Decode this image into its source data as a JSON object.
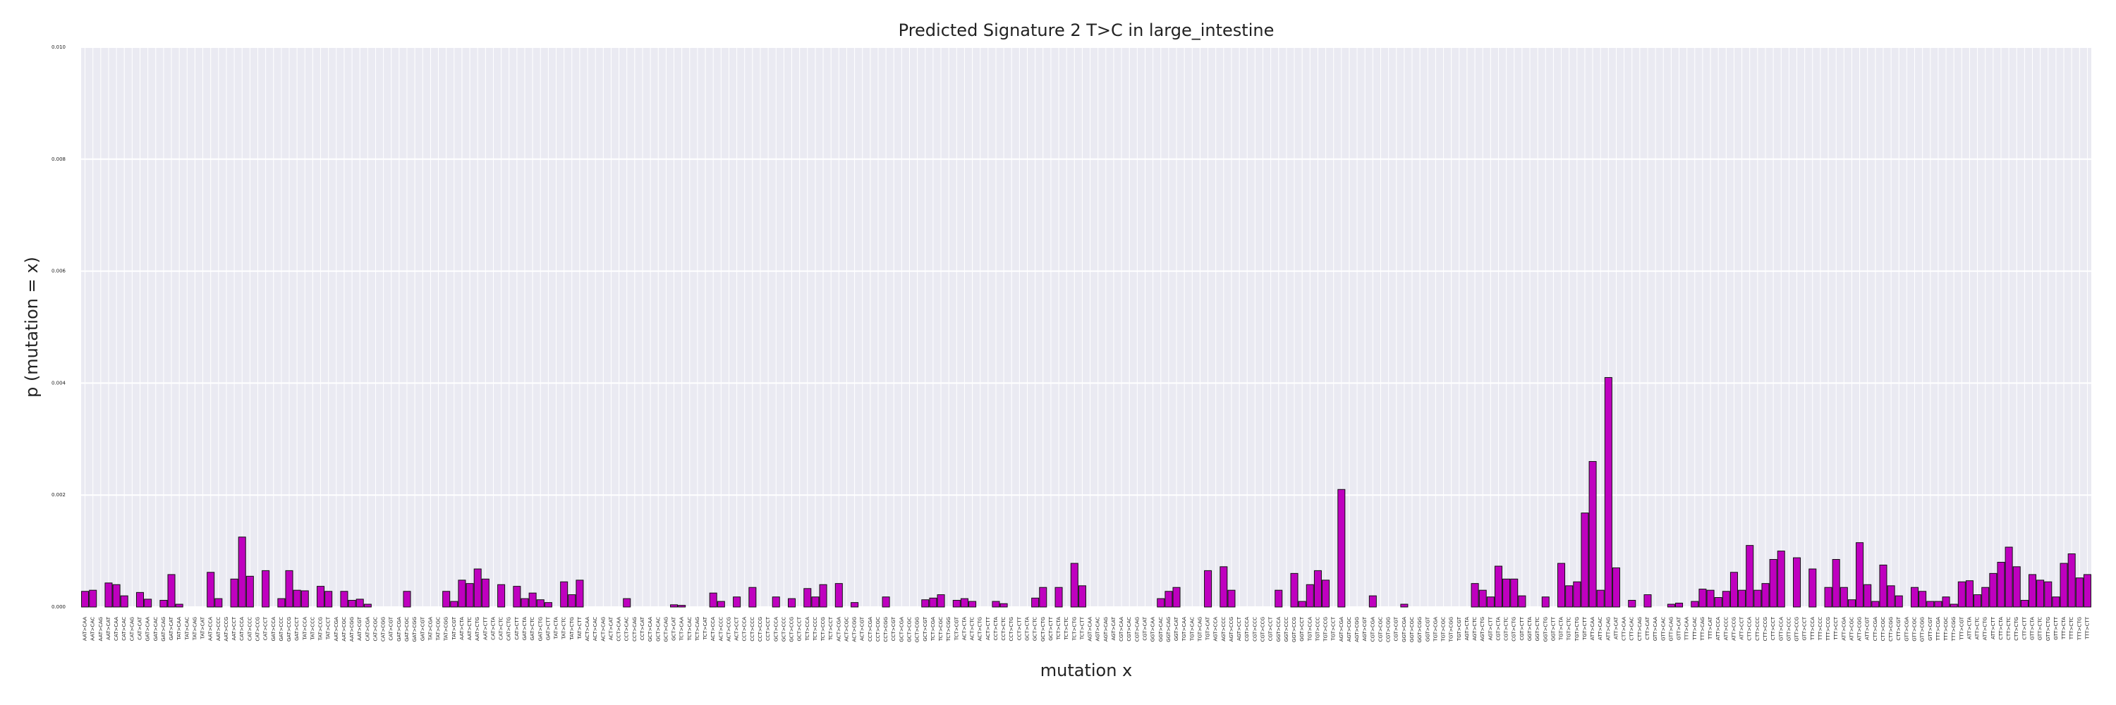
{
  "chart_data": {
    "type": "bar",
    "title": "Predicted Signature 2 T>C in large_intestine",
    "x_label": "mutation x",
    "y_label": "p (mutation = x)",
    "color": "#bf00bf",
    "grid": true,
    "ylim": [
      0,
      0.01
    ],
    "yticks": [
      {
        "value": 0,
        "label": "0.000"
      },
      {
        "value": 0.002,
        "label": "0.002"
      },
      {
        "value": 0.004,
        "label": "0.004"
      },
      {
        "value": 0.006,
        "label": "0.006"
      },
      {
        "value": 0.008,
        "label": "0.008"
      },
      {
        "value": 0.01,
        "label": "0.010"
      }
    ],
    "categories": [
      "AAT>CAA",
      "AAT>CAC",
      "AAT>CAG",
      "AAT>CAT",
      "CAT>CAA",
      "CAT>CAC",
      "CAT>CAG",
      "CAT>CAT",
      "GAT>CAA",
      "GAT>CAC",
      "GAT>CAG",
      "GAT>CAT",
      "TAT>CAA",
      "TAT>CAC",
      "TAT>CAG",
      "TAT>CAT",
      "AAT>CCA",
      "AAT>CCC",
      "AAT>CCG",
      "AAT>CCT",
      "CAT>CCA",
      "CAT>CCC",
      "CAT>CCG",
      "CAT>CCT",
      "GAT>CCA",
      "GAT>CCC",
      "GAT>CCG",
      "GAT>CCT",
      "TAT>CCA",
      "TAT>CCC",
      "TAT>CCG",
      "TAT>CCT",
      "AAT>CGA",
      "AAT>CGC",
      "AAT>CGG",
      "AAT>CGT",
      "CAT>CGA",
      "CAT>CGC",
      "CAT>CGG",
      "CAT>CGT",
      "GAT>CGA",
      "GAT>CGC",
      "GAT>CGG",
      "GAT>CGT",
      "TAT>CGA",
      "TAT>CGC",
      "TAT>CGG",
      "TAT>CGT",
      "AAT>CTA",
      "AAT>CTC",
      "AAT>CTG",
      "AAT>CTT",
      "CAT>CTA",
      "CAT>CTC",
      "CAT>CTG",
      "CAT>CTT",
      "GAT>CTA",
      "GAT>CTC",
      "GAT>CTG",
      "GAT>CTT",
      "TAT>CTA",
      "TAT>CTC",
      "TAT>CTG",
      "TAT>CTT",
      "ACT>CAA",
      "ACT>CAC",
      "ACT>CAG",
      "ACT>CAT",
      "CCT>CAA",
      "CCT>CAC",
      "CCT>CAG",
      "CCT>CAT",
      "GCT>CAA",
      "GCT>CAC",
      "GCT>CAG",
      "GCT>CAT",
      "TCT>CAA",
      "TCT>CAC",
      "TCT>CAG",
      "TCT>CAT",
      "ACT>CCA",
      "ACT>CCC",
      "ACT>CCG",
      "ACT>CCT",
      "CCT>CCA",
      "CCT>CCC",
      "CCT>CCG",
      "CCT>CCT",
      "GCT>CCA",
      "GCT>CCC",
      "GCT>CCG",
      "GCT>CCT",
      "TCT>CCA",
      "TCT>CCC",
      "TCT>CCG",
      "TCT>CCT",
      "ACT>CGA",
      "ACT>CGC",
      "ACT>CGG",
      "ACT>CGT",
      "CCT>CGA",
      "CCT>CGC",
      "CCT>CGG",
      "CCT>CGT",
      "GCT>CGA",
      "GCT>CGC",
      "GCT>CGG",
      "GCT>CGT",
      "TCT>CGA",
      "TCT>CGC",
      "TCT>CGG",
      "TCT>CGT",
      "ACT>CTA",
      "ACT>CTC",
      "ACT>CTG",
      "ACT>CTT",
      "CCT>CTA",
      "CCT>CTC",
      "CCT>CTG",
      "CCT>CTT",
      "GCT>CTA",
      "GCT>CTC",
      "GCT>CTG",
      "GCT>CTT",
      "TCT>CTA",
      "TCT>CTC",
      "TCT>CTG",
      "TCT>CTT",
      "AGT>CAA",
      "AGT>CAC",
      "AGT>CAG",
      "AGT>CAT",
      "CGT>CAA",
      "CGT>CAC",
      "CGT>CAG",
      "CGT>CAT",
      "GGT>CAA",
      "GGT>CAC",
      "GGT>CAG",
      "GGT>CAT",
      "TGT>CAA",
      "TGT>CAC",
      "TGT>CAG",
      "TGT>CAT",
      "AGT>CCA",
      "AGT>CCC",
      "AGT>CCG",
      "AGT>CCT",
      "CGT>CCA",
      "CGT>CCC",
      "CGT>CCG",
      "CGT>CCT",
      "GGT>CCA",
      "GGT>CCC",
      "GGT>CCG",
      "GGT>CCT",
      "TGT>CCA",
      "TGT>CCC",
      "TGT>CCG",
      "TGT>CCT",
      "AGT>CGA",
      "AGT>CGC",
      "AGT>CGG",
      "AGT>CGT",
      "CGT>CGA",
      "CGT>CGC",
      "CGT>CGG",
      "CGT>CGT",
      "GGT>CGA",
      "GGT>CGC",
      "GGT>CGG",
      "GGT>CGT",
      "TGT>CGA",
      "TGT>CGC",
      "TGT>CGG",
      "TGT>CGT",
      "AGT>CTA",
      "AGT>CTC",
      "AGT>CTG",
      "AGT>CTT",
      "CGT>CTA",
      "CGT>CTC",
      "CGT>CTG",
      "CGT>CTT",
      "GGT>CTA",
      "GGT>CTC",
      "GGT>CTG",
      "GGT>CTT",
      "TGT>CTA",
      "TGT>CTC",
      "TGT>CTG",
      "TGT>CTT",
      "ATT>CAA",
      "ATT>CAC",
      "ATT>CAG",
      "ATT>CAT",
      "CTT>CAA",
      "CTT>CAC",
      "CTT>CAG",
      "CTT>CAT",
      "GTT>CAA",
      "GTT>CAC",
      "GTT>CAG",
      "GTT>CAT",
      "TTT>CAA",
      "TTT>CAC",
      "TTT>CAG",
      "TTT>CAT",
      "ATT>CCA",
      "ATT>CCC",
      "ATT>CCG",
      "ATT>CCT",
      "CTT>CCA",
      "CTT>CCC",
      "CTT>CCG",
      "CTT>CCT",
      "GTT>CCA",
      "GTT>CCC",
      "GTT>CCG",
      "GTT>CCT",
      "TTT>CCA",
      "TTT>CCC",
      "TTT>CCG",
      "TTT>CCT",
      "ATT>CGA",
      "ATT>CGC",
      "ATT>CGG",
      "ATT>CGT",
      "CTT>CGA",
      "CTT>CGC",
      "CTT>CGG",
      "CTT>CGT",
      "GTT>CGA",
      "GTT>CGC",
      "GTT>CGG",
      "GTT>CGT",
      "TTT>CGA",
      "TTT>CGC",
      "TTT>CGG",
      "TTT>CGT",
      "ATT>CTA",
      "ATT>CTC",
      "ATT>CTG",
      "ATT>CTT",
      "CTT>CTA",
      "CTT>CTC",
      "CTT>CTG",
      "CTT>CTT",
      "GTT>CTA",
      "GTT>CTC",
      "GTT>CTG",
      "GTT>CTT",
      "TTT>CTA",
      "TTT>CTC",
      "TTT>CTG",
      "TTT>CTT"
    ],
    "values": [
      0.00028,
      0.0003,
      0,
      0.00043,
      0.0004,
      0.0002,
      0,
      0.00026,
      0.00014,
      0,
      0.00012,
      0.00058,
      5e-05,
      0,
      0,
      0,
      0.00062,
      0.00015,
      0,
      0.0005,
      0.00125,
      0.00055,
      0,
      0.00065,
      0,
      0.00015,
      0.00065,
      0.0003,
      0.00029,
      0,
      0.00037,
      0.00028,
      0,
      0.00028,
      0.00012,
      0.00014,
      5e-05,
      0,
      0,
      0,
      0,
      0.00028,
      0,
      0,
      0,
      0,
      0.00028,
      0.0001,
      0.00048,
      0.00042,
      0.00068,
      0.0005,
      0,
      0.0004,
      0,
      0.00037,
      0.00015,
      0.00025,
      0.00013,
      8e-05,
      0,
      0.00045,
      0.00022,
      0.00048,
      0,
      0,
      0,
      0,
      0,
      0.00015,
      0,
      0,
      0,
      0,
      0,
      4e-05,
      3e-05,
      0,
      0,
      0,
      0.00025,
      0.0001,
      0,
      0.00018,
      0,
      0.00035,
      0,
      0,
      0.00018,
      0,
      0.00015,
      0,
      0.00033,
      0.00018,
      0.0004,
      0,
      0.00042,
      0,
      8e-05,
      0,
      0,
      0,
      0.00018,
      0,
      0,
      0,
      0,
      0.00013,
      0.00016,
      0.00022,
      0,
      0.00012,
      0.00015,
      0.0001,
      0,
      0,
      0.0001,
      6e-05,
      0,
      0,
      0,
      0.00016,
      0.00035,
      0,
      0.00035,
      0,
      0.00078,
      0.00038,
      0,
      0,
      0,
      0,
      0,
      0,
      0,
      0,
      0,
      0.00015,
      0.00028,
      0.00035,
      0,
      0,
      0,
      0.00065,
      0,
      0.00072,
      0.0003,
      0,
      0,
      0,
      0,
      0,
      0.0003,
      0,
      0.0006,
      0.0001,
      0.0004,
      0.00065,
      0.00048,
      0,
      0.0021,
      0,
      0,
      0,
      0.0002,
      0,
      0,
      0,
      5e-05,
      0,
      0,
      0,
      0,
      0,
      0,
      0,
      0,
      0.00042,
      0.0003,
      0.00018,
      0.00073,
      0.0005,
      0.0005,
      0.0002,
      0,
      0,
      0.00018,
      0,
      0.00078,
      0.00038,
      0.00045,
      0.00168,
      0.0026,
      0.0003,
      0.0041,
      0.0007,
      0,
      0.00012,
      0,
      0.00022,
      0,
      0,
      5e-05,
      7e-05,
      0,
      0.0001,
      0.00032,
      0.0003,
      0.00017,
      0.00028,
      0.00062,
      0.0003,
      0.0011,
      0.0003,
      0.00042,
      0.00085,
      0.001,
      0,
      0.00088,
      0,
      0.00068,
      0,
      0.00035,
      0.00085,
      0.00035,
      0.00013,
      0.00115,
      0.0004,
      0.0001,
      0.00075,
      0.00038,
      0.0002,
      0,
      0.00035,
      0.00028,
      0.0001,
      0.0001,
      0.00018,
      5e-05,
      0.00045,
      0.00047,
      0.00022,
      0.00035,
      0.0006,
      0.0008,
      0.00107,
      0.00072,
      0.00012,
      0.00058,
      0.00048,
      0.00045,
      0.00018,
      0.00078,
      0.00095,
      0.00052,
      0.00058
    ]
  }
}
